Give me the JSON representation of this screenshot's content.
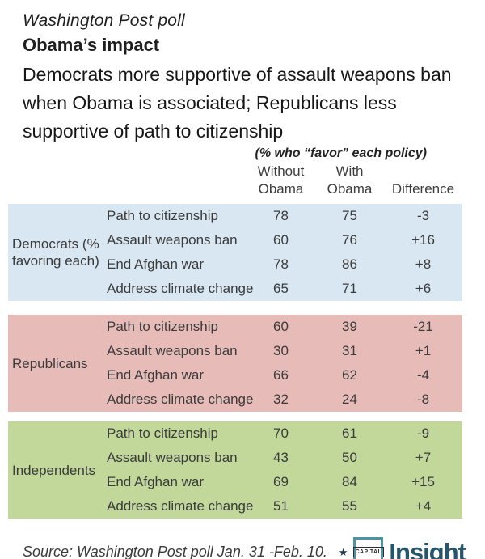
{
  "header": {
    "kicker": "Washington Post poll",
    "title": "Obama’s impact",
    "subtitle_lines": [
      "Democrats more supportive of assault weapons ban",
      "when Obama is associated; Republicans less",
      "supportive of path to citizenship"
    ],
    "note": "(% who “favor” each policy)"
  },
  "columns": {
    "without": {
      "line1": "Without",
      "line2": "Obama"
    },
    "with": {
      "line1": "With",
      "line2": "Obama"
    },
    "difference": {
      "line2": "Difference"
    }
  },
  "groups": [
    {
      "label": "Democrats (% favoring each)",
      "color": "#d9e7f2",
      "rows": [
        {
          "policy": "Path to citizenship",
          "without": "78",
          "with": "75",
          "diff": "-3"
        },
        {
          "policy": "Assault weapons ban",
          "without": "60",
          "with": "76",
          "diff": "+16"
        },
        {
          "policy": "End Afghan war",
          "without": "78",
          "with": "86",
          "diff": "+8"
        },
        {
          "policy": "Address climate change",
          "without": "65",
          "with": "71",
          "diff": "+6"
        }
      ]
    },
    {
      "label": "Republicans",
      "color": "#e7bcb8",
      "rows": [
        {
          "policy": "Path to citizenship",
          "without": "60",
          "with": "39",
          "diff": "-21"
        },
        {
          "policy": "Assault weapons ban",
          "without": "30",
          "with": "31",
          "diff": "+1"
        },
        {
          "policy": "End Afghan war",
          "without": "66",
          "with": "62",
          "diff": "-4"
        },
        {
          "policy": "Address climate change",
          "without": "32",
          "with": "24",
          "diff": "-8"
        }
      ]
    },
    {
      "label": "Independents",
      "color": "#c2d89b",
      "rows": [
        {
          "policy": "Path to citizenship",
          "without": "70",
          "with": "61",
          "diff": "-9"
        },
        {
          "policy": "Assault weapons ban",
          "without": "43",
          "with": "50",
          "diff": "+7"
        },
        {
          "policy": "End Afghan war",
          "without": "69",
          "with": "84",
          "diff": "+15"
        },
        {
          "policy": "Address climate change",
          "without": "51",
          "with": "55",
          "diff": "+4"
        }
      ]
    }
  ],
  "footer": {
    "source": "Source: Washington Post poll Jan. 31 -Feb. 10.",
    "logo": {
      "star": "★",
      "box_word": "CAPITAL",
      "name": "Insight",
      "teal": "#4d93a6",
      "dark": "#26566b",
      "star_color": "#1f3a52"
    }
  },
  "chart_data": {
    "type": "table",
    "title": "Obama's impact",
    "subtitle": "Democrats more supportive of assault weapons ban when Obama is associated; Republicans less supportive of path to citizenship",
    "unit_note": "(% who \"favor\" each policy)",
    "columns": [
      "Without Obama",
      "With Obama",
      "Difference"
    ],
    "groups": [
      {
        "name": "Democrats (% favoring each)",
        "rows": [
          {
            "policy": "Path to citizenship",
            "without_obama": 78,
            "with_obama": 75,
            "difference": -3
          },
          {
            "policy": "Assault weapons ban",
            "without_obama": 60,
            "with_obama": 76,
            "difference": 16
          },
          {
            "policy": "End Afghan war",
            "without_obama": 78,
            "with_obama": 86,
            "difference": 8
          },
          {
            "policy": "Address climate change",
            "without_obama": 65,
            "with_obama": 71,
            "difference": 6
          }
        ]
      },
      {
        "name": "Republicans",
        "rows": [
          {
            "policy": "Path to citizenship",
            "without_obama": 60,
            "with_obama": 39,
            "difference": -21
          },
          {
            "policy": "Assault weapons ban",
            "without_obama": 30,
            "with_obama": 31,
            "difference": 1
          },
          {
            "policy": "End Afghan war",
            "without_obama": 66,
            "with_obama": 62,
            "difference": -4
          },
          {
            "policy": "Address climate change",
            "without_obama": 32,
            "with_obama": 24,
            "difference": -8
          }
        ]
      },
      {
        "name": "Independents",
        "rows": [
          {
            "policy": "Path to citizenship",
            "without_obama": 70,
            "with_obama": 61,
            "difference": -9
          },
          {
            "policy": "Assault weapons ban",
            "without_obama": 43,
            "with_obama": 50,
            "difference": 7
          },
          {
            "policy": "End Afghan war",
            "without_obama": 69,
            "with_obama": 84,
            "difference": 15
          },
          {
            "policy": "Address climate change",
            "without_obama": 51,
            "with_obama": 55,
            "difference": 4
          }
        ]
      }
    ],
    "source": "Source: Washington Post poll Jan. 31 -Feb. 10."
  }
}
